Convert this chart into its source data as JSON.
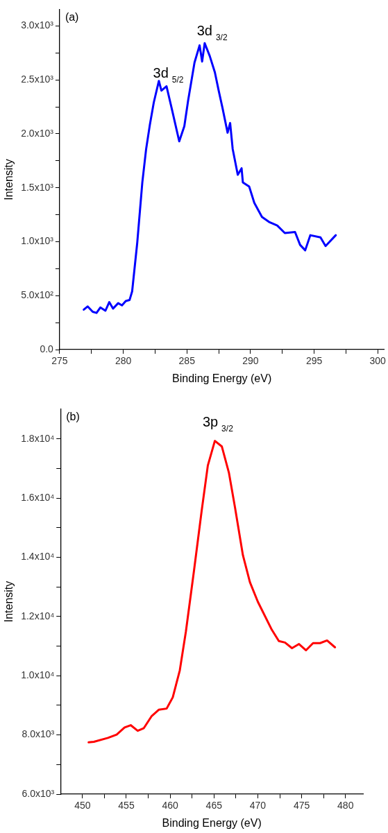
{
  "chart_data": [
    {
      "type": "line",
      "xlabel": "Binding Energy (eV)",
      "ylabel": "Intensity",
      "xlim": [
        275,
        300.5
      ],
      "xticks": [
        275,
        {
          "value": 277.5,
          "label": null
        },
        280,
        {
          "value": 282.5,
          "label": null
        },
        285,
        {
          "value": 287.5,
          "label": null
        },
        290,
        {
          "value": 292.5,
          "label": null
        },
        295,
        {
          "value": 297.5,
          "label": null
        },
        300
      ],
      "ylim": [
        0,
        3150
      ],
      "yticks": [
        {
          "value": 0,
          "label": "0.0"
        },
        {
          "value": 250,
          "label": null
        },
        {
          "value": 500,
          "label": "5.0x10²"
        },
        {
          "value": 750,
          "label": null
        },
        {
          "value": 1000,
          "label": "1.0x10³"
        },
        {
          "value": 1250,
          "label": null
        },
        {
          "value": 1500,
          "label": "1.5x10³"
        },
        {
          "value": 1750,
          "label": null
        },
        {
          "value": 2000,
          "label": "2.0x10³"
        },
        {
          "value": 2250,
          "label": null
        },
        {
          "value": 2500,
          "label": "2.5x10³"
        },
        {
          "value": 2750,
          "label": null
        },
        {
          "value": 3000,
          "label": "3.0x10³"
        }
      ],
      "marker": "none",
      "series": [
        {
          "color": "#0000ff",
          "x": [
            276.9,
            277.2,
            277.6,
            277.9,
            278.2,
            278.6,
            278.9,
            279.2,
            279.6,
            279.9,
            280.2,
            280.5,
            280.7,
            281.1,
            281.5,
            281.8,
            282.1,
            282.4,
            282.8,
            283.0,
            283.4,
            283.8,
            284.4,
            284.8,
            285.1,
            285.6,
            286.0,
            286.2,
            286.4,
            286.8,
            287.2,
            287.5,
            287.8,
            288.2,
            288.4,
            288.6,
            289.0,
            289.3,
            289.4,
            289.9,
            290.3,
            290.9,
            291.5,
            292.1,
            292.7,
            293.5,
            293.9,
            294.3,
            294.7,
            295.5,
            295.9,
            296.7
          ],
          "values": [
            370,
            400,
            350,
            340,
            390,
            360,
            440,
            380,
            430,
            410,
            450,
            460,
            540,
            990,
            1550,
            1860,
            2090,
            2290,
            2490,
            2400,
            2440,
            2240,
            1930,
            2070,
            2310,
            2660,
            2820,
            2670,
            2840,
            2720,
            2570,
            2400,
            2240,
            2010,
            2100,
            1860,
            1620,
            1680,
            1550,
            1510,
            1360,
            1230,
            1180,
            1150,
            1080,
            1090,
            970,
            920,
            1060,
            1040,
            960,
            1060
          ]
        }
      ],
      "annotations": [
        "(a)",
        "3d$_{5/2}$",
        "3d$_{3/2}$"
      ]
    },
    {
      "type": "line",
      "xlabel": "Binding Energy (eV)",
      "ylabel": "Intensity",
      "xlim": [
        447.5,
        482
      ],
      "xticks": [
        450,
        {
          "value": 452.5,
          "label": null
        },
        455,
        {
          "value": 457.5,
          "label": null
        },
        460,
        {
          "value": 462.5,
          "label": null
        },
        465,
        {
          "value": 467.5,
          "label": null
        },
        470,
        {
          "value": 472.5,
          "label": null
        },
        475,
        {
          "value": 477.5,
          "label": null
        },
        480
      ],
      "ylim": [
        6000,
        19000
      ],
      "yticks": [
        {
          "value": 6000,
          "label": "6.0x10³"
        },
        {
          "value": 7000,
          "label": null
        },
        {
          "value": 8000,
          "label": "8.0x10³"
        },
        {
          "value": 9000,
          "label": null
        },
        {
          "value": 10000,
          "label": "1.0x10⁴"
        },
        {
          "value": 11000,
          "label": null
        },
        {
          "value": 12000,
          "label": "1.2x10⁴"
        },
        {
          "value": 13000,
          "label": null
        },
        {
          "value": 14000,
          "label": "1.4x10⁴"
        },
        {
          "value": 15000,
          "label": null
        },
        {
          "value": 16000,
          "label": "1.6x10⁴"
        },
        {
          "value": 17000,
          "label": null
        },
        {
          "value": 18000,
          "label": "1.8x10⁴"
        }
      ],
      "marker": "none",
      "series": [
        {
          "color": "#ff0000",
          "x": [
            450.7,
            451.3,
            452.9,
            453.9,
            454.8,
            455.5,
            456.3,
            457.0,
            457.9,
            458.7,
            459.6,
            460.3,
            461.1,
            461.8,
            462.7,
            463.6,
            464.3,
            465.1,
            465.9,
            466.7,
            467.4,
            468.3,
            469.1,
            470.0,
            471.6,
            472.4,
            473.1,
            473.9,
            474.7,
            475.5,
            476.3,
            477.1,
            477.9,
            478.8
          ],
          "values": [
            7750,
            7770,
            7900,
            8010,
            8250,
            8330,
            8140,
            8230,
            8640,
            8850,
            8890,
            9270,
            10180,
            11500,
            13500,
            15580,
            17100,
            17930,
            17740,
            16860,
            15680,
            14070,
            13160,
            12500,
            11550,
            11170,
            11120,
            10930,
            11070,
            10860,
            11100,
            11100,
            11190,
            10960
          ]
        }
      ],
      "annotations": [
        "(b)",
        "3p$_{3/2}$"
      ]
    }
  ]
}
